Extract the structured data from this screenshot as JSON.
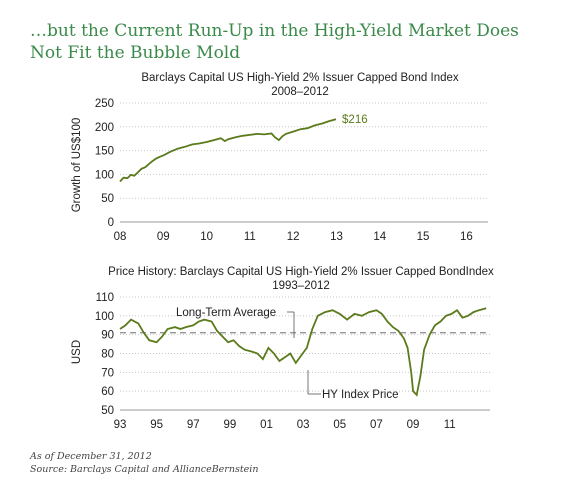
{
  "headline": "…but the Current Run-Up in the High-Yield Market Does Not Fit the Bubble Mold",
  "colors": {
    "series": "#5b7a1b",
    "grid": "#c8c8c8",
    "average_line": "#8a8a8a",
    "headline": "#3a8a4a"
  },
  "footnotes": {
    "as_of": "As of December 31, 2012",
    "source": "Source: Barclays Capital and AllianceBernstein"
  },
  "chart_data": [
    {
      "type": "line",
      "title": "Barclays Capital US High-Yield 2% Issuer Capped Bond Index",
      "subtitle": "2008–2012",
      "xlabel": "",
      "ylabel": "Growth of US$100",
      "ylim": [
        0,
        250
      ],
      "xlim": [
        2008,
        2016.5
      ],
      "yticks": [
        "0",
        "50",
        "100",
        "150",
        "200",
        "250"
      ],
      "xticks": [
        "08",
        "09",
        "10",
        "11",
        "12",
        "13",
        "14",
        "15",
        "16"
      ],
      "grid": "horizontal dotted",
      "end_label": "$216",
      "series": [
        {
          "x": [
            2008.0,
            2008.08,
            2008.17,
            2008.25,
            2008.33,
            2008.42,
            2008.5,
            2008.58,
            2008.67,
            2008.75,
            2008.83,
            2008.92,
            2009.0,
            2009.17,
            2009.33,
            2009.5,
            2009.67,
            2009.83,
            2010.0,
            2010.17,
            2010.33,
            2010.42,
            2010.5,
            2010.67,
            2010.83,
            2011.0,
            2011.17,
            2011.33,
            2011.5,
            2011.58,
            2011.67,
            2011.75,
            2011.83,
            2012.0,
            2012.17,
            2012.33,
            2012.5,
            2012.67,
            2012.83,
            2012.99
          ],
          "values": [
            85,
            93,
            92,
            99,
            97,
            105,
            112,
            115,
            122,
            128,
            133,
            137,
            140,
            148,
            154,
            158,
            163,
            165,
            168,
            172,
            176,
            170,
            174,
            178,
            181,
            183,
            185,
            184,
            186,
            178,
            172,
            180,
            185,
            190,
            195,
            197,
            203,
            207,
            212,
            216
          ]
        }
      ]
    },
    {
      "type": "line",
      "title": "Price History: Barclays Capital US High-Yield 2% Issuer Capped BondIndex",
      "subtitle": "1993–2012",
      "xlabel": "",
      "ylabel": "USD",
      "ylim": [
        50,
        110
      ],
      "xlim": [
        1993,
        2013.2
      ],
      "yticks": [
        "50",
        "60",
        "70",
        "80",
        "90",
        "100",
        "110"
      ],
      "xticks": [
        "93",
        "95",
        "97",
        "99",
        "01",
        "03",
        "05",
        "07",
        "09",
        "11"
      ],
      "grid": "horizontal dotted",
      "reference_line": {
        "label": "Long-Term Average",
        "value": 91
      },
      "annotations": [
        "Long-Term Average",
        "HY Index Price"
      ],
      "series": [
        {
          "name": "HY Index Price",
          "x": [
            1993.0,
            1993.3,
            1993.6,
            1994.0,
            1994.3,
            1994.6,
            1995.0,
            1995.3,
            1995.6,
            1996.0,
            1996.3,
            1996.6,
            1997.0,
            1997.3,
            1997.6,
            1998.0,
            1998.3,
            1998.6,
            1998.9,
            1999.2,
            1999.5,
            1999.8,
            2000.2,
            2000.5,
            2000.8,
            2001.1,
            2001.4,
            2001.7,
            2002.0,
            2002.3,
            2002.6,
            2002.9,
            2003.2,
            2003.5,
            2003.8,
            2004.2,
            2004.6,
            2005.0,
            2005.4,
            2005.8,
            2006.2,
            2006.6,
            2007.0,
            2007.3,
            2007.6,
            2007.9,
            2008.2,
            2008.5,
            2008.7,
            2008.9,
            2009.0,
            2009.2,
            2009.4,
            2009.6,
            2009.9,
            2010.2,
            2010.5,
            2010.8,
            2011.1,
            2011.4,
            2011.7,
            2012.0,
            2012.3,
            2012.6,
            2012.99
          ],
          "values": [
            93,
            95,
            98,
            96,
            91,
            87,
            86,
            89,
            93,
            94,
            93,
            94,
            95,
            97,
            98,
            97,
            92,
            89,
            86,
            87,
            84,
            82,
            81,
            80,
            77,
            83,
            80,
            76,
            78,
            80,
            75,
            79,
            83,
            93,
            100,
            102,
            103,
            101,
            98,
            101,
            100,
            102,
            103,
            101,
            97,
            94,
            92,
            88,
            83,
            70,
            60,
            58,
            68,
            82,
            90,
            95,
            97,
            100,
            101,
            103,
            99,
            100,
            102,
            103,
            104
          ]
        }
      ]
    }
  ]
}
